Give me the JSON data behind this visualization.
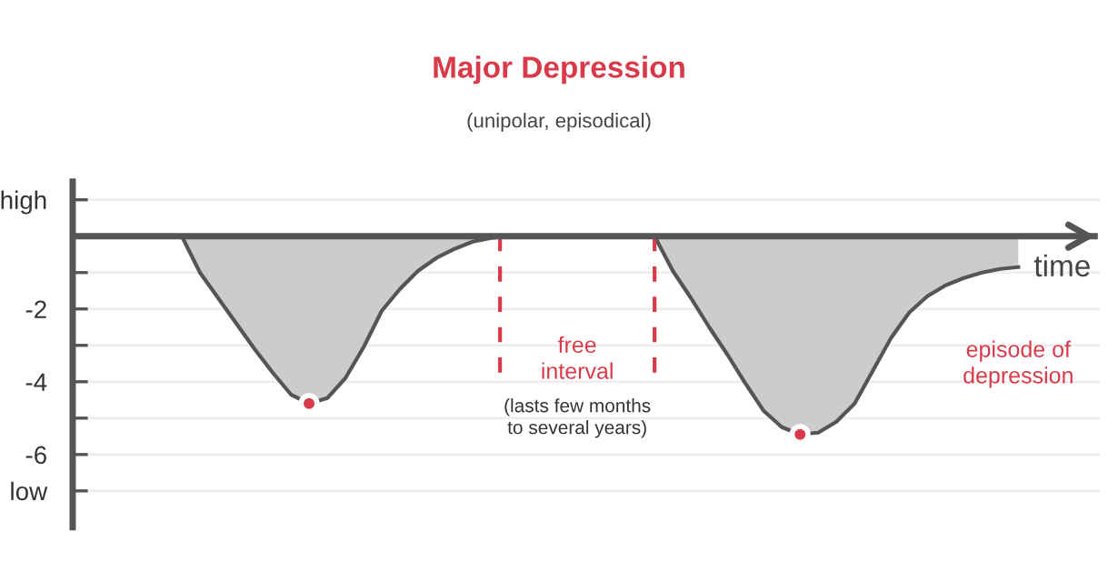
{
  "chart_data": {
    "type": "line",
    "title": "Major Depression",
    "subtitle": "(unipolar, episodical)",
    "xlabel": "time",
    "categories": [
      null,
      null,
      null,
      null,
      null,
      null,
      null,
      null,
      null,
      null,
      null,
      null,
      null,
      null,
      null,
      null,
      null,
      null,
      null,
      null,
      null,
      null,
      null,
      null,
      null,
      null,
      null,
      null,
      null,
      null,
      null,
      null,
      null,
      null,
      null,
      null,
      null,
      null,
      null,
      null,
      null,
      null,
      null,
      null,
      null,
      null,
      null
    ],
    "color": "#555555",
    "values": [
      0,
      -1.0,
      -1.7,
      -2.4,
      -3.1,
      -3.75,
      -4.35,
      -4.6,
      -4.45,
      -3.9,
      -3.05,
      -2.05,
      -1.45,
      -0.95,
      -0.6,
      -0.35,
      -0.15,
      -0.05,
      0,
      0,
      0,
      0,
      0,
      0,
      0,
      0,
      0,
      -0.95,
      -1.7,
      -2.5,
      -3.25,
      -4.05,
      -4.8,
      -5.25,
      -5.45,
      -5.4,
      -5.1,
      -4.6,
      -3.7,
      -2.8,
      -2.1,
      -1.65,
      -1.35,
      -1.15,
      -1.0,
      -0.9,
      -0.85
    ],
    "ylim": [
      -8,
      1.5
    ],
    "yticks": [
      {
        "value": 1,
        "label": "high"
      },
      {
        "value": -1,
        "label": null
      },
      -2,
      {
        "value": -3,
        "label": null
      },
      -4,
      {
        "value": -5,
        "label": null
      },
      -6,
      {
        "value": -7,
        "label": "low"
      }
    ],
    "tick_labels": "y",
    "grid": "y",
    "annotations": [
      "free\ninterval",
      "(lasts few months\nto several years)",
      "episode of\ndepression"
    ]
  }
}
